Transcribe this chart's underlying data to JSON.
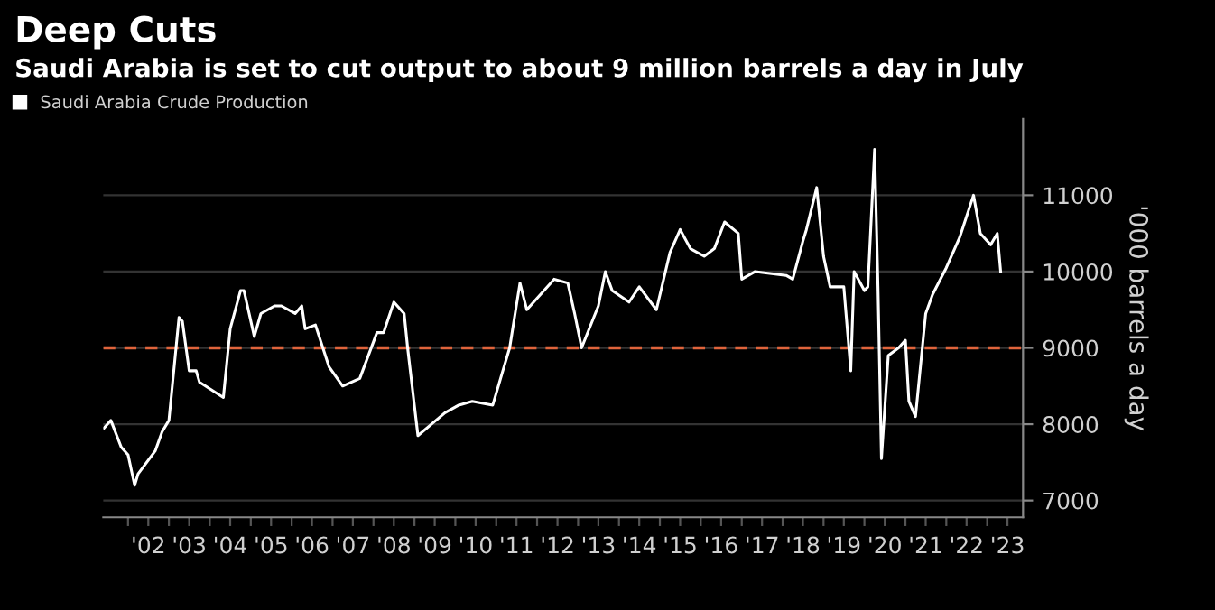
{
  "chart_data": {
    "type": "line",
    "title": "Deep Cuts",
    "subtitle": "Saudi Arabia is set to cut output to about 9 million barrels a day in July",
    "ylabel": "'000 barrels a day",
    "series": [
      {
        "name": "Saudi Arabia Crude Production",
        "color": "#ffffff",
        "x": [
          "2001-06",
          "2001-08",
          "2001-11",
          "2002-01",
          "2002-03",
          "2002-04",
          "2002-09",
          "2002-11",
          "2003-01",
          "2003-04",
          "2003-05",
          "2003-07",
          "2003-09",
          "2003-10",
          "2004-05",
          "2004-07",
          "2004-10",
          "2004-11",
          "2005-02",
          "2005-04",
          "2005-08",
          "2005-10",
          "2006-02",
          "2006-04",
          "2006-05",
          "2006-08",
          "2006-12",
          "2007-04",
          "2007-09",
          "2008-02",
          "2008-04",
          "2008-07",
          "2008-10",
          "2008-11",
          "2009-02",
          "2009-06",
          "2009-10",
          "2010-02",
          "2010-06",
          "2010-12",
          "2011-03",
          "2011-05",
          "2011-08",
          "2011-10",
          "2012-01",
          "2012-06",
          "2012-10",
          "2012-12",
          "2013-02",
          "2013-07",
          "2013-09",
          "2013-11",
          "2014-04",
          "2014-07",
          "2014-12",
          "2015-04",
          "2015-07",
          "2015-10",
          "2016-02",
          "2016-05",
          "2016-08",
          "2016-12",
          "2017-01",
          "2017-05",
          "2018-02",
          "2018-04",
          "2018-07",
          "2018-08",
          "2018-11",
          "2019-01",
          "2019-03",
          "2019-07",
          "2019-09",
          "2019-10",
          "2020-01",
          "2020-02",
          "2020-04",
          "2020-05",
          "2020-06",
          "2020-08",
          "2020-11",
          "2021-01",
          "2021-02",
          "2021-04",
          "2021-07",
          "2021-09",
          "2022-01",
          "2022-05",
          "2022-09",
          "2022-11",
          "2023-02",
          "2023-04",
          "2023-05"
        ],
        "values": [
          7950,
          8050,
          7700,
          7600,
          7200,
          7350,
          7650,
          7900,
          8050,
          9400,
          9350,
          8700,
          8700,
          8550,
          8350,
          9250,
          9750,
          9750,
          9150,
          9450,
          9550,
          9550,
          9450,
          9550,
          9250,
          9300,
          8750,
          8500,
          8600,
          9200,
          9200,
          9600,
          9450,
          9000,
          7850,
          8000,
          8150,
          8250,
          8300,
          8250,
          8700,
          9000,
          9850,
          9500,
          9650,
          9900,
          9850,
          9450,
          9000,
          9550,
          10000,
          9750,
          9600,
          9800,
          9500,
          10250,
          10550,
          10300,
          10200,
          10300,
          10650,
          10500,
          9900,
          10000,
          9950,
          9900,
          10400,
          10550,
          11100,
          10200,
          9800,
          9800,
          8700,
          10000,
          9750,
          9800,
          11600,
          9800,
          7550,
          8900,
          9000,
          9100,
          8300,
          8100,
          9450,
          9700,
          10050,
          10450,
          11000,
          10500,
          10350,
          10500,
          10000
        ]
      }
    ],
    "xlim": [
      "2001-05-25",
      "2023-11-17"
    ],
    "ylim": [
      6780,
      12000
    ],
    "xticks": [
      {
        "value": "2002",
        "label": null
      },
      {
        "value": "2002-07",
        "label": "'02"
      },
      {
        "value": "2003",
        "label": null
      },
      {
        "value": "2003-07",
        "label": "'03"
      },
      {
        "value": "2004",
        "label": null
      },
      {
        "value": "2004-07",
        "label": "'04"
      },
      {
        "value": "2005",
        "label": null
      },
      {
        "value": "2005-07",
        "label": "'05"
      },
      {
        "value": "2006",
        "label": null
      },
      {
        "value": "2006-07",
        "label": "'06"
      },
      {
        "value": "2007",
        "label": null
      },
      {
        "value": "2007-07",
        "label": "'07"
      },
      {
        "value": "2008",
        "label": null
      },
      {
        "value": "2008-07",
        "label": "'08"
      },
      {
        "value": "2009",
        "label": null
      },
      {
        "value": "2009-07",
        "label": "'09"
      },
      {
        "value": "2010",
        "label": null
      },
      {
        "value": "2010-07",
        "label": "'10"
      },
      {
        "value": "2011",
        "label": null
      },
      {
        "value": "2011-07",
        "label": "'11"
      },
      {
        "value": "2012",
        "label": null
      },
      {
        "value": "2012-07",
        "label": "'12"
      },
      {
        "value": "2013",
        "label": null
      },
      {
        "value": "2013-07",
        "label": "'13"
      },
      {
        "value": "2014",
        "label": null
      },
      {
        "value": "2014-07",
        "label": "'14"
      },
      {
        "value": "2015",
        "label": null
      },
      {
        "value": "2015-07",
        "label": "'15"
      },
      {
        "value": "2016",
        "label": null
      },
      {
        "value": "2016-07",
        "label": "'16"
      },
      {
        "value": "2017",
        "label": null
      },
      {
        "value": "2017-07",
        "label": "'17"
      },
      {
        "value": "2018",
        "label": null
      },
      {
        "value": "2018-07",
        "label": "'18"
      },
      {
        "value": "2019",
        "label": null
      },
      {
        "value": "2019-07",
        "label": "'19"
      },
      {
        "value": "2020",
        "label": null
      },
      {
        "value": "2020-07",
        "label": "'20"
      },
      {
        "value": "2021",
        "label": null
      },
      {
        "value": "2021-07",
        "label": "'21"
      },
      {
        "value": "2022",
        "label": null
      },
      {
        "value": "2022-07",
        "label": "'22"
      },
      {
        "value": "2023",
        "label": null
      },
      {
        "value": "2023-07",
        "label": "'23"
      }
    ],
    "yticks": [
      7000,
      8000,
      9000,
      10000,
      11000
    ],
    "ref_lines": [
      {
        "axis": "y",
        "value": 9000,
        "color": "#e0643c",
        "line_style": "dashed"
      }
    ],
    "grid": "y",
    "legend": "top left"
  }
}
